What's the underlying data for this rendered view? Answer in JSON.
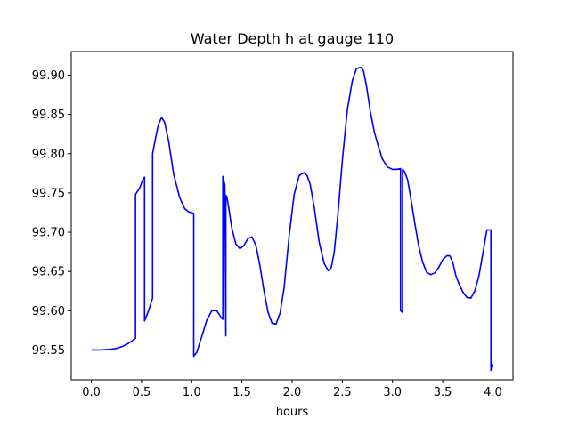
{
  "chart_data": {
    "type": "line",
    "title": "Water Depth h at gauge 110",
    "xlabel": "hours",
    "ylabel": "",
    "xlim": [
      -0.2,
      4.2
    ],
    "ylim": [
      99.512,
      99.93
    ],
    "x_ticks": [
      0.0,
      0.5,
      1.0,
      1.5,
      2.0,
      2.5,
      3.0,
      3.5,
      4.0
    ],
    "x_tick_labels": [
      "0.0",
      "0.5",
      "1.0",
      "1.5",
      "2.0",
      "2.5",
      "3.0",
      "3.5",
      "4.0"
    ],
    "y_ticks": [
      99.55,
      99.6,
      99.65,
      99.7,
      99.75,
      99.8,
      99.85,
      99.9
    ],
    "y_tick_labels": [
      "99.55",
      "99.60",
      "99.65",
      "99.70",
      "99.75",
      "99.80",
      "99.85",
      "99.90"
    ],
    "grid": false,
    "legend": "none",
    "series": [
      {
        "color": "#0000ff",
        "x": [
          0.0,
          0.1,
          0.2,
          0.25,
          0.3,
          0.35,
          0.4,
          0.44,
          0.44,
          0.48,
          0.52,
          0.53,
          0.53,
          0.57,
          0.61,
          0.61,
          0.64,
          0.67,
          0.7,
          0.73,
          0.77,
          0.82,
          0.88,
          0.93,
          0.97,
          1.0,
          1.02,
          1.02,
          1.05,
          1.1,
          1.15,
          1.2,
          1.25,
          1.29,
          1.31,
          1.31,
          1.33,
          1.34,
          1.34,
          1.35,
          1.37,
          1.4,
          1.44,
          1.48,
          1.52,
          1.56,
          1.6,
          1.64,
          1.68,
          1.72,
          1.76,
          1.8,
          1.84,
          1.88,
          1.92,
          1.97,
          2.02,
          2.07,
          2.12,
          2.15,
          2.18,
          2.22,
          2.27,
          2.32,
          2.36,
          2.39,
          2.42,
          2.46,
          2.5,
          2.55,
          2.6,
          2.64,
          2.68,
          2.71,
          2.74,
          2.78,
          2.82,
          2.86,
          2.9,
          2.95,
          3.0,
          3.04,
          3.08,
          3.08,
          3.1,
          3.1,
          3.12,
          3.15,
          3.18,
          3.22,
          3.26,
          3.3,
          3.34,
          3.38,
          3.42,
          3.46,
          3.5,
          3.54,
          3.57,
          3.6,
          3.63,
          3.66,
          3.7,
          3.74,
          3.78,
          3.82,
          3.86,
          3.9,
          3.94,
          3.98,
          3.98,
          3.99
        ],
        "y": [
          99.55,
          99.55,
          99.551,
          99.552,
          99.554,
          99.557,
          99.561,
          99.565,
          99.748,
          99.756,
          99.769,
          99.77,
          99.587,
          99.6,
          99.616,
          99.8,
          99.82,
          99.838,
          99.846,
          99.84,
          99.816,
          99.774,
          99.744,
          99.73,
          99.726,
          99.725,
          99.724,
          99.542,
          99.547,
          99.567,
          99.588,
          99.6,
          99.6,
          99.592,
          99.589,
          99.771,
          99.76,
          99.568,
          99.747,
          99.745,
          99.73,
          99.705,
          99.685,
          99.679,
          99.683,
          99.692,
          99.694,
          99.683,
          99.657,
          99.625,
          99.598,
          99.584,
          99.583,
          99.597,
          99.629,
          99.695,
          99.748,
          99.772,
          99.776,
          99.772,
          99.761,
          99.732,
          99.687,
          99.66,
          99.651,
          99.655,
          99.675,
          99.728,
          99.791,
          99.856,
          99.893,
          99.908,
          99.91,
          99.906,
          99.887,
          99.853,
          99.827,
          99.809,
          99.793,
          99.783,
          99.78,
          99.78,
          99.781,
          99.6,
          99.598,
          99.78,
          99.777,
          99.767,
          99.745,
          99.713,
          99.683,
          99.662,
          99.649,
          99.646,
          99.648,
          99.655,
          99.665,
          99.67,
          99.67,
          99.662,
          99.645,
          99.635,
          99.624,
          99.617,
          99.616,
          99.625,
          99.644,
          99.673,
          99.703,
          99.703,
          99.524,
          99.532
        ]
      }
    ]
  }
}
